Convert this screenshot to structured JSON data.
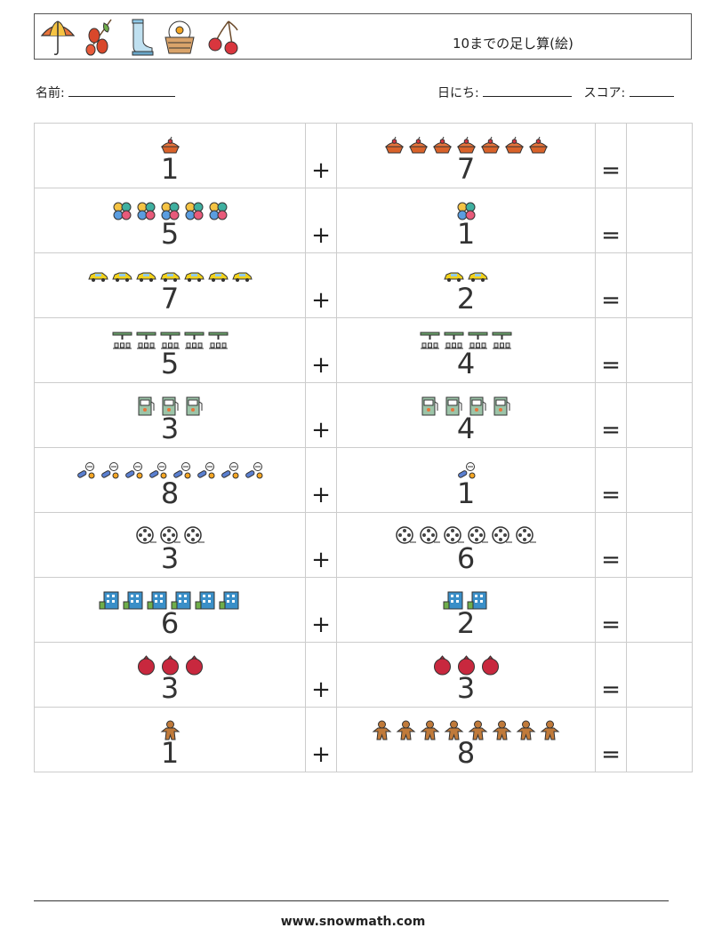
{
  "header": {
    "icons": [
      "umbrella-icon",
      "rosehip-icon",
      "rain-boot-icon",
      "flower-basket-icon",
      "cherries-icon"
    ],
    "title": "10までの足し算(絵)"
  },
  "name_label": "名前:",
  "date_label": "日にち:",
  "score_label": "スコア:",
  "operator": "+",
  "equals": "=",
  "rows": [
    {
      "a": 1,
      "b": 7,
      "icon": "pie",
      "color": "#e8743b"
    },
    {
      "a": 5,
      "b": 1,
      "icon": "flower",
      "color": "#3fb0a0"
    },
    {
      "a": 7,
      "b": 2,
      "icon": "car",
      "color": "#f2d21b"
    },
    {
      "a": 5,
      "b": 4,
      "icon": "machine",
      "color": "#6aa06a"
    },
    {
      "a": 3,
      "b": 4,
      "icon": "fuel",
      "color": "#9cc4a8"
    },
    {
      "a": 8,
      "b": 1,
      "icon": "pills",
      "color": "#5a7fd0"
    },
    {
      "a": 3,
      "b": 6,
      "icon": "film",
      "color": "#444444"
    },
    {
      "a": 6,
      "b": 2,
      "icon": "bank",
      "color": "#3a8fc8"
    },
    {
      "a": 3,
      "b": 3,
      "icon": "pomegranate",
      "color": "#c8283e"
    },
    {
      "a": 1,
      "b": 8,
      "icon": "gingerbread",
      "color": "#c07a3a"
    }
  ],
  "footer": "www.snowmath.com"
}
